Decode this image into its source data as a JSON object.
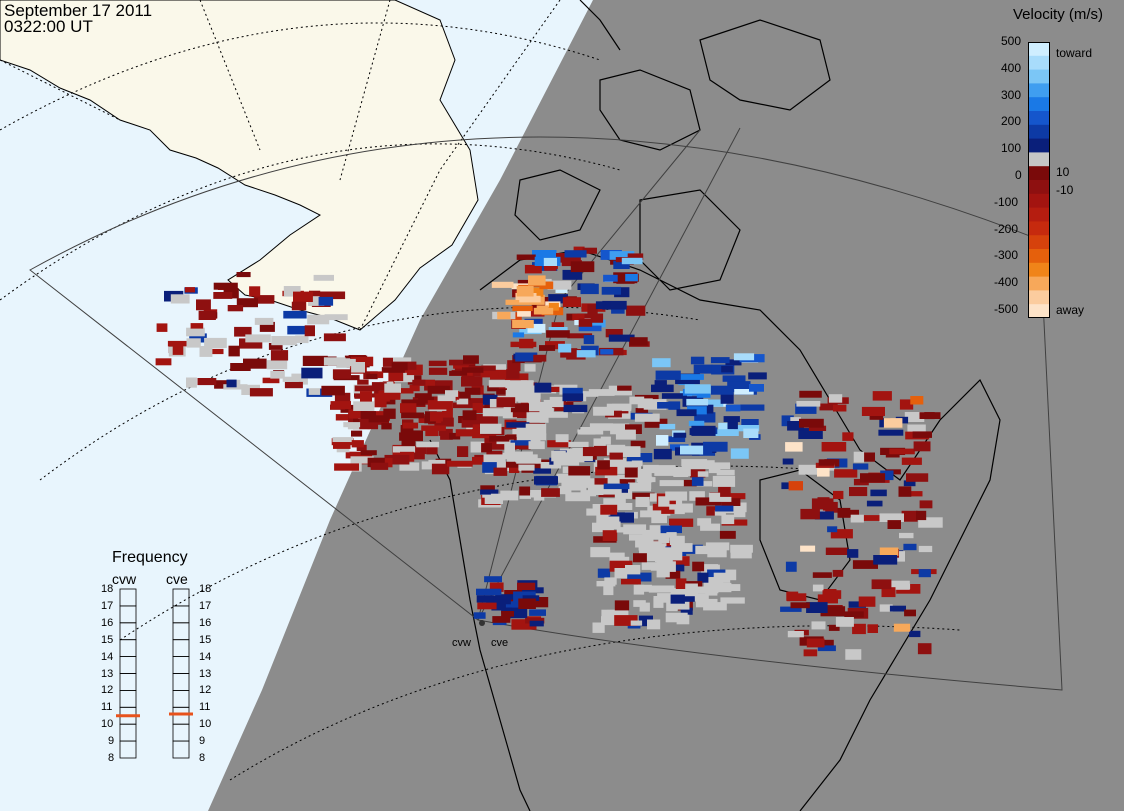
{
  "header": {
    "date": "September 17 2011",
    "time": "0322:00 UT"
  },
  "colors": {
    "ocean": "#e8f5fd",
    "land_sunlit": "#faf8ea",
    "night_shade": "#8c8c8c",
    "ground_scatter": "#c8c8c8",
    "coast": "#000000",
    "grid": "#000000",
    "fov": "#404040",
    "freq_marker": "#e8521c"
  },
  "velocity_legend": {
    "title": "Velocity (m/s)",
    "toward_label": "toward",
    "away_label": "away",
    "ticks": [
      "500",
      "400",
      "300",
      "200",
      "100",
      "0",
      "-100",
      "-200",
      "-300",
      "-400",
      "-500"
    ],
    "inner_ticks": [
      "10",
      "-10"
    ],
    "scale": [
      "#cfeeff",
      "#a8dcfb",
      "#7bc6f6",
      "#3f9ef0",
      "#1a79e6",
      "#1556cc",
      "#0d3aa5",
      "#0a1f7a",
      "#c6c6c6",
      "#7a0a0a",
      "#8e1010",
      "#a31410",
      "#b51d10",
      "#c62a0e",
      "#d6420c",
      "#e5600c",
      "#f08419",
      "#f7a85a",
      "#fbcc9e",
      "#fde3c8"
    ]
  },
  "frequency_legend": {
    "title": "Frequency",
    "radars": [
      {
        "name": "cvw",
        "value_mhz": 10.5
      },
      {
        "name": "cve",
        "value_mhz": 10.6
      }
    ],
    "ticks": [
      "18",
      "17",
      "16",
      "15",
      "14",
      "13",
      "12",
      "11",
      "10",
      "9",
      "8"
    ]
  },
  "radar_sites": [
    {
      "name": "cvw"
    },
    {
      "name": "cve"
    }
  ]
}
